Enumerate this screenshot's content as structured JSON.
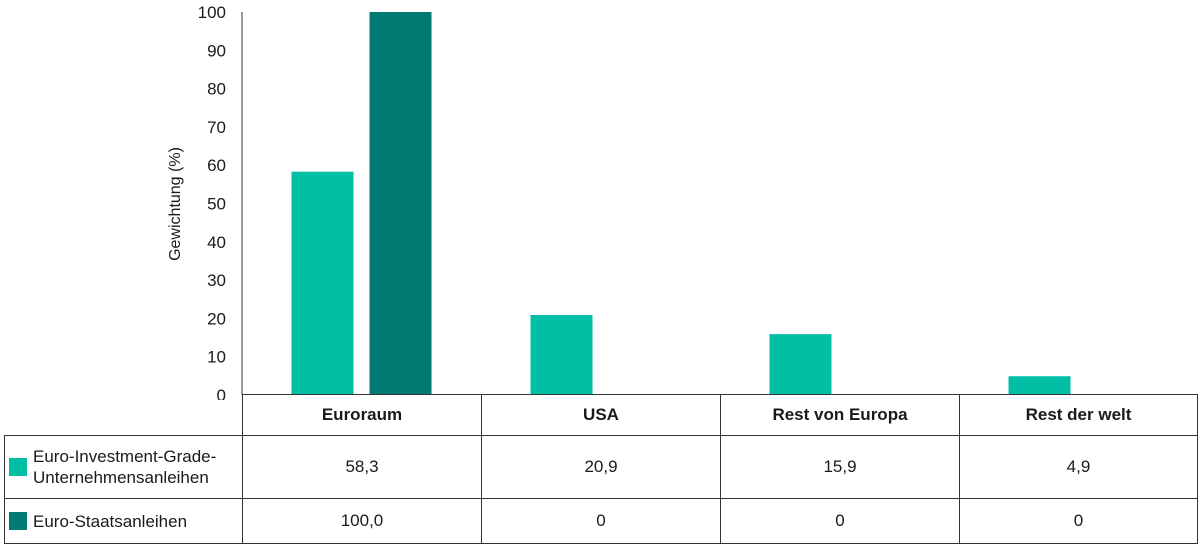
{
  "chart_data": {
    "type": "bar",
    "ylabel": "Gewichtung (%)",
    "ylim": [
      0,
      100
    ],
    "yticks": [
      0,
      10,
      20,
      30,
      40,
      50,
      60,
      70,
      80,
      90,
      100
    ],
    "categories": [
      "Euroraum",
      "USA",
      "Rest von Europa",
      "Rest der welt"
    ],
    "series": [
      {
        "name": "Euro-Investment-Grade-Unternehmensanleihen",
        "color": "#00bfa5",
        "values": [
          58.3,
          20.9,
          15.9,
          4.9
        ],
        "labels": [
          "58,3",
          "20,9",
          "15,9",
          "4,9"
        ]
      },
      {
        "name": "Euro-Staatsanleihen",
        "color": "#007a72",
        "values": [
          100.0,
          0,
          0,
          0
        ],
        "labels": [
          "100,0",
          "0",
          "0",
          "0"
        ]
      }
    ]
  }
}
